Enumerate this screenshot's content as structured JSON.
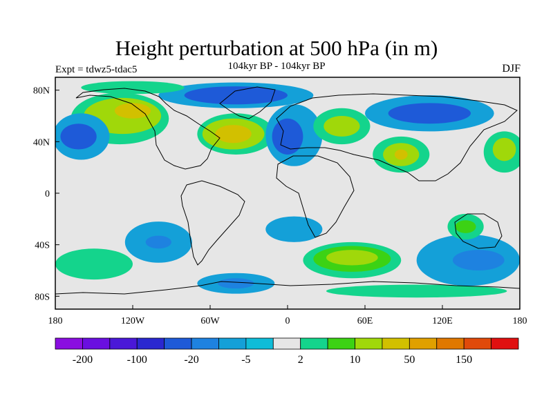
{
  "title": "Height perturbation at 500 hPa (in m)",
  "subtitle": "104kyr BP - 104kyr BP",
  "experiment": "Expt = tdwz5-tdac5",
  "season": "DJF",
  "map": {
    "projection": "equirectangular",
    "lon_range": [
      -180,
      180
    ],
    "lat_range": [
      -90,
      90
    ],
    "background_color": "#e6e6e6",
    "lat_ticks": [
      {
        "lat": 80,
        "label": "80N"
      },
      {
        "lat": 40,
        "label": "40N"
      },
      {
        "lat": 0,
        "label": "0"
      },
      {
        "lat": -40,
        "label": "40S"
      },
      {
        "lat": -80,
        "label": "80S"
      }
    ],
    "lon_ticks": [
      {
        "lon": -180,
        "label": "180"
      },
      {
        "lon": -120,
        "label": "120W"
      },
      {
        "lon": -60,
        "label": "60W"
      },
      {
        "lon": 0,
        "label": "0"
      },
      {
        "lon": 60,
        "label": "60E"
      },
      {
        "lon": 120,
        "label": "120E"
      },
      {
        "lon": 180,
        "label": "180"
      }
    ]
  },
  "colorbar": {
    "colors": [
      "#8a0ee0",
      "#6a0fe0",
      "#4a18d8",
      "#2a28d0",
      "#1e5ad8",
      "#1e82e0",
      "#14a0d8",
      "#0fbcd8",
      "#e6e6e6",
      "#14d48c",
      "#3cd214",
      "#a0d80a",
      "#d2c000",
      "#e0a000",
      "#e07800",
      "#e04a0a",
      "#e01010"
    ],
    "labels": [
      "-200",
      "-100",
      "-20",
      "-5",
      "2",
      "10",
      "50",
      "150"
    ]
  },
  "regions": [
    {
      "name": "nh-ridge-atlantic-outer",
      "color": "#14d48c",
      "lon": -40,
      "lat": 46,
      "rlon": 30,
      "rlat": 16
    },
    {
      "name": "nh-ridge-atlantic-mid",
      "color": "#a0d80a",
      "lon": -42,
      "lat": 46,
      "rlon": 24,
      "rlat": 12
    },
    {
      "name": "nh-ridge-atlantic-core",
      "color": "#d2c000",
      "lon": -42,
      "lat": 46,
      "rlon": 14,
      "rlat": 7
    },
    {
      "name": "nh-ridge-pacific-outer",
      "color": "#14d48c",
      "lon": -130,
      "lat": 58,
      "rlon": 38,
      "rlat": 20
    },
    {
      "name": "nh-ridge-pacific-mid",
      "color": "#a0d80a",
      "lon": -128,
      "lat": 60,
      "rlon": 30,
      "rlat": 14
    },
    {
      "name": "nh-ridge-pacific-core",
      "color": "#d2c000",
      "lon": -120,
      "lat": 64,
      "rlon": 14,
      "rlat": 6
    },
    {
      "name": "nh-trough-pacific-outer",
      "color": "#14a0d8",
      "lon": -160,
      "lat": 44,
      "rlon": 22,
      "rlat": 18
    },
    {
      "name": "nh-trough-pacific-core",
      "color": "#1e5ad8",
      "lon": -162,
      "lat": 44,
      "rlon": 14,
      "rlat": 10
    },
    {
      "name": "nh-trough-arctic",
      "color": "#14a0d8",
      "lon": -40,
      "lat": 76,
      "rlon": 60,
      "rlat": 10
    },
    {
      "name": "nh-trough-arctic-core",
      "color": "#1e5ad8",
      "lon": -40,
      "lat": 76,
      "rlon": 40,
      "rlat": 7
    },
    {
      "name": "nh-trough-europe",
      "color": "#14a0d8",
      "lon": 5,
      "lat": 45,
      "rlon": 22,
      "rlat": 24
    },
    {
      "name": "nh-trough-europe-core",
      "color": "#1e5ad8",
      "lon": 0,
      "lat": 44,
      "rlon": 12,
      "rlat": 14
    },
    {
      "name": "nh-ridge-russia",
      "color": "#14d48c",
      "lon": 42,
      "lat": 52,
      "rlon": 22,
      "rlat": 14
    },
    {
      "name": "nh-ridge-russia-core",
      "color": "#a0d80a",
      "lon": 42,
      "lat": 52,
      "rlon": 14,
      "rlat": 8
    },
    {
      "name": "nh-ridge-asia",
      "color": "#14d48c",
      "lon": 88,
      "lat": 30,
      "rlon": 22,
      "rlat": 14
    },
    {
      "name": "nh-ridge-asia-core",
      "color": "#a0d80a",
      "lon": 88,
      "lat": 30,
      "rlon": 14,
      "rlat": 9
    },
    {
      "name": "nh-ridge-asia-center",
      "color": "#d2c000",
      "lon": 88,
      "lat": 30,
      "rlon": 5,
      "rlat": 4
    },
    {
      "name": "nh-trough-siberia",
      "color": "#14a0d8",
      "lon": 110,
      "lat": 62,
      "rlon": 50,
      "rlat": 14
    },
    {
      "name": "nh-trough-siberia-core",
      "color": "#1e5ad8",
      "lon": 110,
      "lat": 62,
      "rlon": 32,
      "rlat": 8
    },
    {
      "name": "nh-ridge-npacific",
      "color": "#14d48c",
      "lon": 168,
      "lat": 32,
      "rlon": 16,
      "rlat": 16
    },
    {
      "name": "nh-ridge-npacific-core",
      "color": "#a0d80a",
      "lon": 168,
      "lat": 34,
      "rlon": 9,
      "rlat": 9
    },
    {
      "name": "nh-ridge-ne-pacific",
      "color": "#14d48c",
      "lon": -120,
      "lat": 82,
      "rlon": 40,
      "rlat": 5
    },
    {
      "name": "sh-trough-pacific",
      "color": "#14a0d8",
      "lon": -100,
      "lat": -38,
      "rlon": 26,
      "rlat": 16
    },
    {
      "name": "sh-trough-pacific-core",
      "color": "#1e82e0",
      "lon": -100,
      "lat": -38,
      "rlon": 10,
      "rlat": 5
    },
    {
      "name": "sh-trough-indian",
      "color": "#14a0d8",
      "lon": 5,
      "lat": -28,
      "rlon": 22,
      "rlat": 10
    },
    {
      "name": "sh-trough-south",
      "color": "#14a0d8",
      "lon": -40,
      "lat": -70,
      "rlon": 30,
      "rlat": 8
    },
    {
      "name": "sh-trough-south-core",
      "color": "#1e82e0",
      "lon": -40,
      "lat": -70,
      "rlon": 14,
      "rlat": 4
    },
    {
      "name": "sh-ridge-south-atlantic",
      "color": "#14d48c",
      "lon": 50,
      "lat": -52,
      "rlon": 38,
      "rlat": 14
    },
    {
      "name": "sh-ridge-south-atlantic-mid",
      "color": "#3cd214",
      "lon": 50,
      "lat": -51,
      "rlon": 30,
      "rlat": 10
    },
    {
      "name": "sh-ridge-south-atlantic-core",
      "color": "#a0d80a",
      "lon": 50,
      "lat": -50,
      "rlon": 20,
      "rlat": 6
    },
    {
      "name": "sh-trough-australia",
      "color": "#14a0d8",
      "lon": 140,
      "lat": -52,
      "rlon": 40,
      "rlat": 20
    },
    {
      "name": "sh-trough-australia-core",
      "color": "#1e82e0",
      "lon": 148,
      "lat": -52,
      "rlon": 20,
      "rlat": 8
    },
    {
      "name": "sh-ridge-sw-pacific",
      "color": "#14d48c",
      "lon": -150,
      "lat": -55,
      "rlon": 30,
      "rlat": 12
    },
    {
      "name": "sh-ridge-australia",
      "color": "#14d48c",
      "lon": 138,
      "lat": -26,
      "rlon": 14,
      "rlat": 10
    },
    {
      "name": "sh-ridge-australia-core",
      "color": "#3cd214",
      "lon": 138,
      "lat": -26,
      "rlon": 8,
      "rlat": 5
    },
    {
      "name": "sh-ridge-southern-ocean",
      "color": "#14d48c",
      "lon": 100,
      "lat": -76,
      "rlon": 70,
      "rlat": 5
    }
  ]
}
